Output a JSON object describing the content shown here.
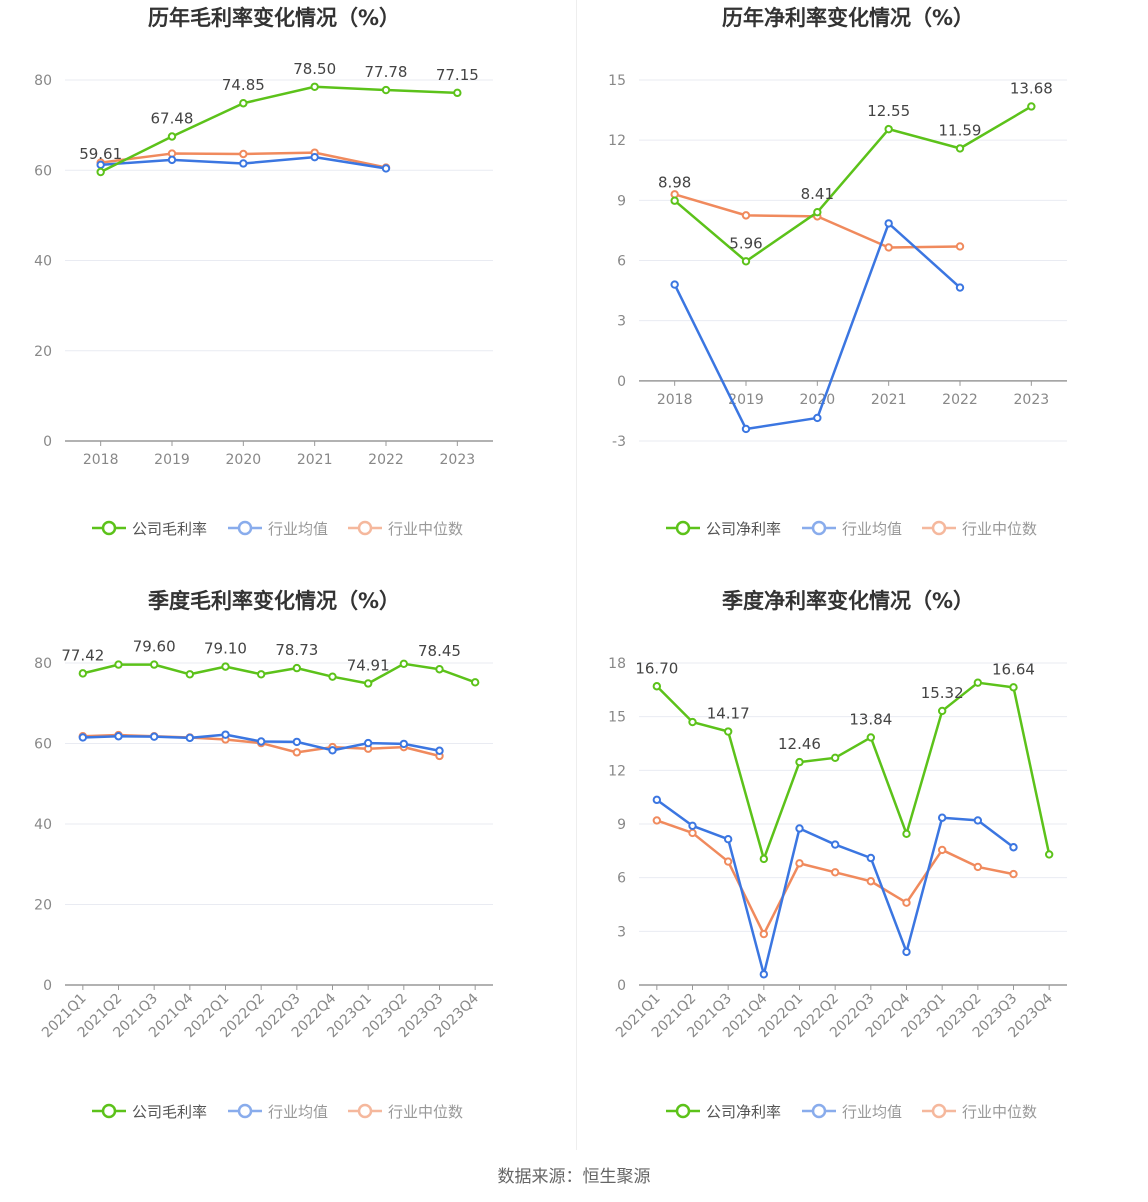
{
  "source": "数据来源：恒生聚源",
  "legend": {
    "industry_avg": "行业均值",
    "industry_median": "行业中位数"
  },
  "colors": {
    "company": "#5cc21a",
    "avg": "#3b76e1",
    "median": "#f08a5d",
    "grid": "#e9ebf2",
    "axis": "#999999"
  },
  "chart_data": [
    {
      "id": "annual-gross",
      "type": "line",
      "title": "历年毛利率变化情况（%）",
      "categories": [
        "2018",
        "2019",
        "2020",
        "2021",
        "2022",
        "2023"
      ],
      "yticks": [
        0,
        20,
        40,
        60,
        80
      ],
      "ylim": [
        0,
        80
      ],
      "series": [
        {
          "name": "公司毛利率",
          "key": "company",
          "values": [
            59.61,
            67.48,
            74.85,
            78.5,
            77.78,
            77.15
          ],
          "labels": [
            "59.61",
            "67.48",
            "74.85",
            "78.50",
            "77.78",
            "77.15"
          ],
          "label_indices": [
            0,
            1,
            2,
            3,
            4,
            5
          ]
        },
        {
          "name": "行业均值",
          "key": "avg",
          "values": [
            61.2,
            62.3,
            61.5,
            62.9,
            60.4,
            null
          ]
        },
        {
          "name": "行业中位数",
          "key": "median",
          "values": [
            61.7,
            63.7,
            63.6,
            63.9,
            60.6,
            null
          ]
        }
      ],
      "grid": true,
      "legend_position": "bottom"
    },
    {
      "id": "annual-net",
      "type": "line",
      "title": "历年净利率变化情况（%）",
      "categories": [
        "2018",
        "2019",
        "2020",
        "2021",
        "2022",
        "2023"
      ],
      "yticks": [
        -3,
        0,
        3,
        6,
        9,
        12,
        15
      ],
      "ylim": [
        -3,
        15
      ],
      "series": [
        {
          "name": "公司净利率",
          "key": "company",
          "values": [
            8.98,
            5.96,
            8.41,
            12.55,
            11.59,
            13.68
          ],
          "labels": [
            "8.98",
            "5.96",
            "8.41",
            "12.55",
            "11.59",
            "13.68"
          ],
          "label_indices": [
            0,
            1,
            2,
            3,
            4,
            5
          ]
        },
        {
          "name": "行业均值",
          "key": "avg",
          "values": [
            4.8,
            -2.4,
            -1.85,
            7.85,
            4.65,
            null
          ]
        },
        {
          "name": "行业中位数",
          "key": "median",
          "values": [
            9.3,
            8.25,
            8.2,
            6.65,
            6.7,
            null
          ]
        }
      ],
      "grid": true,
      "legend_position": "bottom"
    },
    {
      "id": "quarterly-gross",
      "type": "line",
      "title": "季度毛利率变化情况（%）",
      "categories": [
        "2021Q1",
        "2021Q2",
        "2021Q3",
        "2021Q4",
        "2022Q1",
        "2022Q2",
        "2022Q3",
        "2022Q4",
        "2023Q1",
        "2023Q2",
        "2023Q3",
        "2023Q4"
      ],
      "yticks": [
        0,
        20,
        40,
        60,
        80
      ],
      "ylim": [
        0,
        80
      ],
      "series": [
        {
          "name": "公司毛利率",
          "key": "company",
          "values": [
            77.42,
            79.6,
            79.6,
            77.2,
            79.1,
            77.2,
            78.73,
            76.6,
            74.91,
            79.8,
            78.45,
            75.2
          ],
          "labels": [
            "77.42",
            "79.60",
            "79.10",
            "78.73",
            "74.91",
            "78.45"
          ],
          "label_indices": [
            0,
            2,
            4,
            6,
            8,
            10
          ]
        },
        {
          "name": "行业均值",
          "key": "avg",
          "values": [
            61.5,
            61.8,
            61.7,
            61.4,
            62.2,
            60.5,
            60.4,
            58.3,
            60.1,
            59.9,
            58.2,
            null
          ]
        },
        {
          "name": "行业中位数",
          "key": "median",
          "values": [
            61.8,
            62.1,
            61.8,
            61.5,
            61.0,
            60.1,
            57.8,
            59.1,
            58.7,
            59.1,
            56.9,
            null
          ]
        }
      ],
      "grid": true,
      "legend_position": "bottom"
    },
    {
      "id": "quarterly-net",
      "type": "line",
      "title": "季度净利率变化情况（%）",
      "categories": [
        "2021Q1",
        "2021Q2",
        "2021Q3",
        "2021Q4",
        "2022Q1",
        "2022Q2",
        "2022Q3",
        "2022Q4",
        "2023Q1",
        "2023Q2",
        "2023Q3",
        "2023Q4"
      ],
      "yticks": [
        0,
        3,
        6,
        9,
        12,
        15,
        18
      ],
      "ylim": [
        0,
        18
      ],
      "series": [
        {
          "name": "公司净利率",
          "key": "company",
          "values": [
            16.7,
            14.7,
            14.17,
            7.05,
            12.46,
            12.7,
            13.84,
            8.45,
            15.32,
            16.9,
            16.64,
            7.3
          ],
          "labels": [
            "16.70",
            "14.17",
            "12.46",
            "13.84",
            "15.32",
            "16.64"
          ],
          "label_indices": [
            0,
            2,
            4,
            6,
            8,
            10
          ]
        },
        {
          "name": "行业均值",
          "key": "avg",
          "values": [
            10.35,
            8.9,
            8.15,
            0.6,
            8.75,
            7.85,
            7.1,
            1.85,
            9.35,
            9.2,
            7.7,
            null
          ]
        },
        {
          "name": "行业中位数",
          "key": "median",
          "values": [
            9.2,
            8.5,
            6.9,
            2.85,
            6.8,
            6.3,
            5.8,
            4.6,
            7.55,
            6.6,
            6.2,
            null
          ]
        }
      ],
      "grid": true,
      "legend_position": "bottom"
    }
  ]
}
